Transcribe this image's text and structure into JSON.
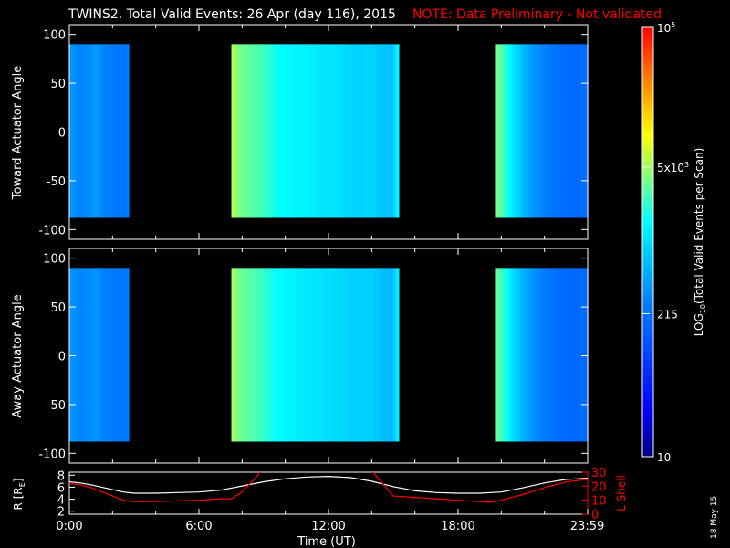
{
  "title": "TWINS2. Total Valid Events: 26 Apr (day 116), 2015",
  "note": "NOTE: Data Preliminary - Not validated",
  "footer_date": "18 May 15",
  "colors": {
    "background": "#000000",
    "foreground": "#ffffff",
    "note": "#ff0000",
    "r_line": "#ffffff",
    "lshell_line": "#ff0000"
  },
  "colorbar": {
    "label_prefix": "LOG",
    "label_sub": "10",
    "label_suffix": "(Total Valid Events per Scan)",
    "ticks": [
      {
        "value": 10,
        "text": "10"
      },
      {
        "value": 215,
        "text": "215"
      },
      {
        "value": 5000,
        "base": "5x10",
        "exp": "3"
      },
      {
        "value": 100000,
        "base": "10",
        "exp": "5"
      }
    ],
    "range": [
      10,
      100000
    ]
  },
  "chart_data": [
    {
      "type": "heatmap",
      "ylabel": "Toward Actuator Angle",
      "xlim": [
        0,
        24
      ],
      "ylim": [
        -110,
        110
      ],
      "yticks": [
        -100,
        -50,
        0,
        50,
        100
      ],
      "data_ylim": [
        -88,
        90
      ],
      "blocks": [
        {
          "x": [
            0,
            2.75
          ],
          "profile": [
            [
              0,
              400
            ],
            [
              0.5,
              280
            ],
            [
              1.0,
              350
            ],
            [
              1.25,
              420
            ],
            [
              1.5,
              300
            ],
            [
              2.0,
              260
            ],
            [
              2.5,
              230
            ],
            [
              2.75,
              240
            ]
          ]
        },
        {
          "x": [
            7.5,
            15.25
          ],
          "profile": [
            [
              7.5,
              6000
            ],
            [
              7.7,
              4500
            ],
            [
              8.0,
              3500
            ],
            [
              8.5,
              3000
            ],
            [
              9.0,
              2500
            ],
            [
              9.5,
              1800
            ],
            [
              10.0,
              1500
            ],
            [
              10.5,
              1400
            ],
            [
              11.0,
              1300
            ],
            [
              11.5,
              1200
            ],
            [
              12.0,
              1100
            ],
            [
              12.5,
              1050
            ],
            [
              13.0,
              900
            ],
            [
              13.5,
              850
            ],
            [
              14.0,
              900
            ],
            [
              14.5,
              700
            ],
            [
              15.0,
              650
            ],
            [
              15.25,
              1800
            ]
          ]
        },
        {
          "x": [
            19.75,
            24
          ],
          "profile": [
            [
              19.75,
              4000
            ],
            [
              20.1,
              2500
            ],
            [
              20.5,
              1200
            ],
            [
              21.0,
              600
            ],
            [
              21.5,
              380
            ],
            [
              22.0,
              280
            ],
            [
              22.5,
              220
            ],
            [
              23.0,
              200
            ],
            [
              23.5,
              190
            ],
            [
              24,
              200
            ]
          ]
        }
      ]
    },
    {
      "type": "heatmap",
      "ylabel": "Away Actuator Angle",
      "xlim": [
        0,
        24
      ],
      "ylim": [
        -110,
        110
      ],
      "yticks": [
        -100,
        -50,
        0,
        50,
        100
      ],
      "data_ylim": [
        -88,
        90
      ],
      "blocks": [
        {
          "x": [
            0,
            2.75
          ],
          "profile": [
            [
              0,
              380
            ],
            [
              0.5,
              300
            ],
            [
              1.0,
              330
            ],
            [
              1.25,
              380
            ],
            [
              1.5,
              290
            ],
            [
              2.0,
              250
            ],
            [
              2.5,
              230
            ],
            [
              2.75,
              240
            ]
          ]
        },
        {
          "x": [
            7.5,
            15.25
          ],
          "profile": [
            [
              7.5,
              5500
            ],
            [
              7.7,
              4200
            ],
            [
              8.0,
              3300
            ],
            [
              8.5,
              2800
            ],
            [
              9.0,
              2300
            ],
            [
              9.5,
              1700
            ],
            [
              10.0,
              1400
            ],
            [
              10.5,
              1300
            ],
            [
              11.0,
              1200
            ],
            [
              11.5,
              1100
            ],
            [
              12.0,
              1000
            ],
            [
              12.5,
              950
            ],
            [
              13.0,
              850
            ],
            [
              13.5,
              800
            ],
            [
              14.0,
              850
            ],
            [
              14.5,
              650
            ],
            [
              15.0,
              600
            ],
            [
              15.25,
              1500
            ]
          ]
        },
        {
          "x": [
            19.75,
            24
          ],
          "profile": [
            [
              19.75,
              3500
            ],
            [
              20.1,
              2200
            ],
            [
              20.5,
              1000
            ],
            [
              21.0,
              550
            ],
            [
              21.5,
              350
            ],
            [
              22.0,
              260
            ],
            [
              22.5,
              210
            ],
            [
              23.0,
              190
            ],
            [
              23.5,
              180
            ],
            [
              24,
              190
            ]
          ]
        }
      ]
    },
    {
      "type": "line",
      "xlabel": "Time (UT)",
      "ylabel": "R [R",
      "ylabel_sub": "E",
      "ylabel_tail": "]",
      "y2label": "L Shell",
      "xlim": [
        0,
        24
      ],
      "ylim": [
        1.5,
        8.5
      ],
      "y2lim": [
        0,
        30
      ],
      "yticks": [
        2,
        4,
        6,
        8
      ],
      "y2ticks": [
        0,
        10,
        20,
        30
      ],
      "xticks": [
        {
          "value": 0,
          "text": "0:00"
        },
        {
          "value": 6,
          "text": "6:00"
        },
        {
          "value": 12,
          "text": "12:00"
        },
        {
          "value": 18,
          "text": "18:00"
        },
        {
          "value": 23.98,
          "text": "23:59"
        }
      ],
      "series": [
        {
          "key": "r",
          "axis": "left",
          "x": [
            0,
            0.5,
            1,
            1.5,
            2,
            2.5,
            3,
            4,
            5,
            6,
            7,
            8,
            9,
            10,
            11,
            12,
            13,
            14,
            15,
            16,
            17,
            18,
            19,
            20,
            21,
            22,
            23,
            24
          ],
          "y": [
            6.9,
            6.7,
            6.4,
            6.0,
            5.6,
            5.2,
            5.0,
            5.0,
            5.1,
            5.2,
            5.5,
            6.2,
            6.9,
            7.4,
            7.7,
            7.8,
            7.6,
            7.0,
            6.1,
            5.4,
            5.1,
            5.0,
            5.0,
            5.2,
            5.9,
            6.7,
            7.3,
            7.5
          ]
        },
        {
          "key": "l",
          "axis": "right",
          "x": [
            0,
            0.5,
            1,
            1.5,
            2,
            2.5,
            3,
            4,
            5,
            6,
            7,
            7.5,
            8,
            8.5,
            8.9
          ],
          "y": [
            22,
            21,
            19,
            16,
            13,
            10,
            9,
            9,
            9.5,
            10,
            11,
            11,
            16,
            24,
            31
          ]
        },
        {
          "key": "l2",
          "axis": "right",
          "x": [
            14.0,
            14.5,
            15,
            16,
            17,
            18,
            19,
            19.5,
            20,
            21,
            22,
            23,
            24
          ],
          "y": [
            31,
            22,
            13,
            12,
            11,
            10,
            9,
            8.5,
            10,
            14,
            19,
            23,
            25
          ]
        }
      ]
    }
  ]
}
